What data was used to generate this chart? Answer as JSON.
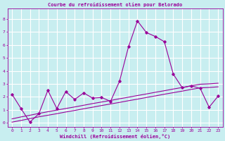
{
  "title": "Courbe du refroidissement olien pour Belorado",
  "xlabel": "Windchill (Refroidissement éolien,°C)",
  "ylabel": "",
  "bg_color": "#c8eef0",
  "grid_color": "#ffffff",
  "line_color": "#990099",
  "xlim": [
    -0.5,
    23.5
  ],
  "ylim": [
    -0.3,
    8.8
  ],
  "xticks": [
    0,
    1,
    2,
    3,
    4,
    5,
    6,
    7,
    8,
    9,
    10,
    11,
    12,
    13,
    14,
    15,
    16,
    17,
    18,
    19,
    20,
    21,
    22,
    23
  ],
  "yticks": [
    0,
    1,
    2,
    3,
    4,
    5,
    6,
    7,
    8
  ],
  "main_y": [
    2.2,
    1.1,
    0.05,
    0.7,
    2.5,
    1.1,
    2.4,
    1.8,
    2.3,
    1.9,
    1.95,
    1.65,
    3.2,
    5.85,
    7.85,
    6.95,
    6.65,
    6.25,
    3.75,
    2.7,
    2.85,
    2.65,
    1.2,
    2.05
  ],
  "trend1_y": [
    0.3,
    0.45,
    0.58,
    0.72,
    0.85,
    0.98,
    1.1,
    1.22,
    1.35,
    1.48,
    1.6,
    1.72,
    1.85,
    1.97,
    2.1,
    2.22,
    2.35,
    2.47,
    2.6,
    2.72,
    2.85,
    2.97,
    3.0,
    3.05
  ],
  "trend2_y": [
    0.05,
    0.18,
    0.32,
    0.46,
    0.58,
    0.7,
    0.83,
    0.95,
    1.08,
    1.2,
    1.33,
    1.45,
    1.57,
    1.7,
    1.82,
    1.95,
    2.07,
    2.2,
    2.32,
    2.44,
    2.57,
    2.69,
    2.72,
    2.77
  ]
}
